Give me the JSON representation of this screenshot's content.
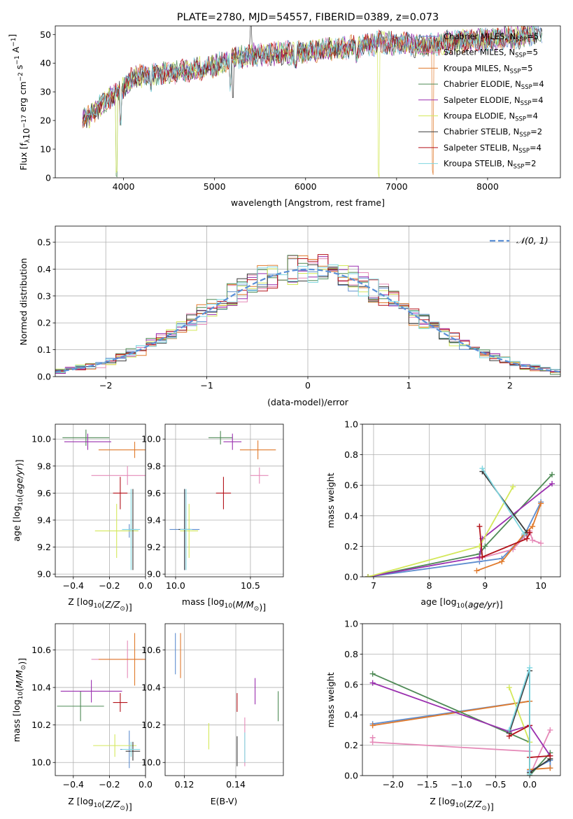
{
  "chart_data": [
    {
      "id": "spectrum",
      "type": "line",
      "title": "PLATE=2780, MJD=54557, FIBERID=0389, z=0.073",
      "xlabel": "wavelength [Angstrom, rest frame]",
      "ylabel": "Flux [f$_\\lambda$10$^{-17}$ erg cm$^{-2}$ s$^{-1}$ A$^{-1}$]",
      "ylabel_parts": [
        "Flux [f",
        "λ",
        "10",
        "−17",
        " erg cm",
        "−2",
        " s",
        "−1",
        " A",
        "−1",
        "]"
      ],
      "xlim": [
        3250,
        8800
      ],
      "ylim": [
        0,
        53
      ],
      "xticks": [
        4000,
        5000,
        6000,
        7000,
        8000
      ],
      "yticks": [
        0,
        10,
        20,
        30,
        40,
        50
      ],
      "grid": false,
      "legend_position": "right",
      "series": [
        {
          "name": "Chabrier MILES, N$_{SSP}$=5",
          "label_main": "Chabrier MILES, N",
          "label_sub": "SSP",
          "label_end": "=5",
          "color": "#5f8ecf"
        },
        {
          "name": "Salpeter MILES, N$_{SSP}$=5",
          "label_main": "Salpeter MILES, N",
          "label_sub": "SSP",
          "label_end": "=5",
          "color": "#e58ab8"
        },
        {
          "name": "Kroupa MILES, N$_{SSP}$=5",
          "label_main": "Kroupa MILES, N",
          "label_sub": "SSP",
          "label_end": "=5",
          "color": "#e07a2c"
        },
        {
          "name": "Chabrier ELODIE, N$_{SSP}$=4",
          "label_main": "Chabrier ELODIE, N",
          "label_sub": "SSP",
          "label_end": "=4",
          "color": "#4e8a55"
        },
        {
          "name": "Salpeter ELODIE, N$_{SSP}$=4",
          "label_main": "Salpeter ELODIE, N",
          "label_sub": "SSP",
          "label_end": "=4",
          "color": "#9a2faf"
        },
        {
          "name": "Kroupa ELODIE, N$_{SSP}$=4",
          "label_main": "Kroupa ELODIE, N",
          "label_sub": "SSP",
          "label_end": "=4",
          "color": "#d4e85a"
        },
        {
          "name": "Chabrier STELIB, N$_{SSP}$=2",
          "label_main": "Chabrier STELIB, N",
          "label_sub": "SSP",
          "label_end": "=2",
          "color": "#3a3a3a"
        },
        {
          "name": "Salpeter STELIB, N$_{SSP}$=4",
          "label_main": "Salpeter STELIB, N",
          "label_sub": "SSP",
          "label_end": "=4",
          "color": "#b3121a"
        },
        {
          "name": "Kroupa STELIB, N$_{SSP}$=2",
          "label_main": "Kroupa STELIB, N",
          "label_sub": "SSP",
          "label_end": "=2",
          "color": "#7fd6e0"
        }
      ],
      "continuum": {
        "x": [
          3550,
          3650,
          3800,
          3950,
          4100,
          4300,
          4600,
          5000,
          5200,
          5500,
          6000,
          6300,
          6600,
          6800,
          7000,
          7300,
          7500,
          7800,
          8000,
          8300,
          8600
        ],
        "y": [
          20,
          22,
          27,
          30,
          35,
          36,
          37,
          39,
          42,
          43,
          44,
          45,
          46,
          47,
          47,
          46,
          47,
          48,
          48,
          49,
          50
        ]
      },
      "dips": [
        {
          "x": 3920,
          "y": 0
        },
        {
          "x": 3970,
          "y": 18
        },
        {
          "x": 4300,
          "y": 30
        },
        {
          "x": 4860,
          "y": 36
        },
        {
          "x": 5175,
          "y": 30
        },
        {
          "x": 5890,
          "y": 38
        },
        {
          "x": 6560,
          "y": 40
        },
        {
          "x": 6800,
          "y": 0
        },
        {
          "x": 7400,
          "y": 0
        }
      ]
    },
    {
      "id": "residuals",
      "type": "line",
      "xlabel": "(data-model)/error",
      "ylabel": "Normed distribution",
      "xlim": [
        -2.5,
        2.5
      ],
      "ylim": [
        0,
        0.56
      ],
      "xticks": [
        -2,
        -1,
        0,
        1,
        2
      ],
      "yticks": [
        0.0,
        0.1,
        0.2,
        0.3,
        0.4,
        0.5
      ],
      "grid": true,
      "legend": "$\\mathcal{N}(0,1)$",
      "legend_text": "𝒩(0, 1)",
      "legend_position": "top-right",
      "bin_width": 0.1,
      "bin_start": -2.5
    },
    {
      "id": "age-vs-Z",
      "type": "scatter",
      "xlabel": "Z [log$_{10}$($Z/Z_\\odot$)]",
      "xlabel_parts": [
        "Z [log",
        "10",
        "(Z/Z",
        "⊙",
        ")]"
      ],
      "ylabel": "age  [log$_{10}$($age/yr$)]",
      "ylabel_parts": [
        "age  [log",
        "10",
        "(age/yr)]"
      ],
      "xlim": [
        -0.5,
        0.0
      ],
      "ylim": [
        8.98,
        10.11
      ],
      "xticks": [
        -0.4,
        -0.2,
        0.0
      ],
      "yticks": [
        9.0,
        9.2,
        9.4,
        9.6,
        9.8,
        10.0
      ],
      "grid": true,
      "points": [
        {
          "series": "Chabrier MILES",
          "x": -0.09,
          "xerr": 0.05,
          "y": 9.32,
          "yerr": 0.05
        },
        {
          "series": "Salpeter MILES",
          "x": -0.1,
          "xerr": 0.2,
          "y": 9.73,
          "yerr": 0.07
        },
        {
          "series": "Kroupa MILES",
          "x": -0.06,
          "xerr": 0.2,
          "y": 9.92,
          "yerr": 0.06
        },
        {
          "series": "Chabrier ELODIE",
          "x": -0.33,
          "xerr": 0.13,
          "y": 10.01,
          "yerr": 0.06
        },
        {
          "series": "Salpeter ELODIE",
          "x": -0.32,
          "xerr": 0.13,
          "y": 9.98,
          "yerr": 0.06
        },
        {
          "series": "Kroupa ELODIE",
          "x": -0.16,
          "xerr": 0.12,
          "y": 9.32,
          "yerr": 0.2
        },
        {
          "series": "Chabrier STELIB",
          "x": -0.07,
          "xerr": 0.02,
          "y": 9.33,
          "yerr": 0.3
        },
        {
          "series": "Salpeter STELIB",
          "x": -0.14,
          "xerr": 0.04,
          "y": 9.6,
          "yerr": 0.12
        },
        {
          "series": "Kroupa STELIB",
          "x": -0.08,
          "xerr": 0.05,
          "y": 9.33,
          "yerr": 0.3
        }
      ]
    },
    {
      "id": "age-vs-mass",
      "type": "scatter",
      "xlabel": "mass [log$_{10}$($M/M_\\odot$)]",
      "xlabel_parts": [
        "mass [log",
        "10",
        "(M/M",
        "⊙",
        ")]"
      ],
      "xlim": [
        9.93,
        10.72
      ],
      "ylim": [
        8.98,
        10.11
      ],
      "xticks": [
        10.0,
        10.5
      ],
      "yticks": [
        9.0,
        9.2,
        9.4,
        9.6,
        9.8,
        10.0
      ],
      "grid": true,
      "points": [
        {
          "series": "Chabrier MILES",
          "x": 10.06,
          "xerr": 0.1,
          "y": 9.33,
          "yerr": 0.3
        },
        {
          "series": "Salpeter MILES",
          "x": 10.56,
          "xerr": 0.06,
          "y": 9.73,
          "yerr": 0.06
        },
        {
          "series": "Kroupa MILES",
          "x": 10.55,
          "xerr": 0.12,
          "y": 9.92,
          "yerr": 0.07
        },
        {
          "series": "Chabrier ELODIE",
          "x": 10.3,
          "xerr": 0.08,
          "y": 10.01,
          "yerr": 0.05
        },
        {
          "series": "Salpeter ELODIE",
          "x": 10.38,
          "xerr": 0.06,
          "y": 9.98,
          "yerr": 0.06
        },
        {
          "series": "Kroupa ELODIE",
          "x": 10.09,
          "xerr": 0.06,
          "y": 9.32,
          "yerr": 0.2
        },
        {
          "series": "Chabrier STELIB",
          "x": 10.06,
          "xerr": 0.04,
          "y": 9.33,
          "yerr": 0.3
        },
        {
          "series": "Salpeter STELIB",
          "x": 10.32,
          "xerr": 0.05,
          "y": 9.6,
          "yerr": 0.12
        },
        {
          "series": "Kroupa STELIB",
          "x": 10.07,
          "xerr": 0.04,
          "y": 9.33,
          "yerr": 0.3
        }
      ]
    },
    {
      "id": "mass-weight-vs-age",
      "type": "line",
      "xlabel": "age  [log$_{10}$($age/yr$)]",
      "xlabel_parts": [
        "age  [log",
        "10",
        "(age/yr)]"
      ],
      "ylabel": "mass weight",
      "xlim": [
        6.8,
        10.35
      ],
      "ylim": [
        0,
        1
      ],
      "xticks": [
        7,
        8,
        9,
        10
      ],
      "yticks": [
        0.0,
        0.2,
        0.4,
        0.6,
        0.8,
        1.0
      ],
      "grid": true,
      "series": [
        {
          "name": "Chabrier MILES",
          "x": [
            6.9,
            8.9,
            9.3,
            9.7,
            10.0
          ],
          "y": [
            0.0,
            0.1,
            0.12,
            0.27,
            0.49
          ]
        },
        {
          "name": "Salpeter MILES",
          "x": [
            8.9,
            9.5,
            9.8,
            9.85,
            10.0
          ],
          "y": [
            0.12,
            0.18,
            0.3,
            0.24,
            0.22
          ]
        },
        {
          "name": "Kroupa MILES",
          "x": [
            8.85,
            9.3,
            9.7,
            9.85,
            10.0
          ],
          "y": [
            0.04,
            0.1,
            0.28,
            0.33,
            0.48
          ]
        },
        {
          "name": "Chabrier ELODIE",
          "x": [
            6.9,
            8.9,
            9.0,
            10.2
          ],
          "y": [
            0.0,
            0.15,
            0.2,
            0.67
          ]
        },
        {
          "name": "Salpeter ELODIE",
          "x": [
            6.9,
            8.9,
            8.95,
            10.2
          ],
          "y": [
            0.0,
            0.13,
            0.25,
            0.61
          ]
        },
        {
          "name": "Kroupa ELODIE",
          "x": [
            6.9,
            8.9,
            9.5
          ],
          "y": [
            0.0,
            0.2,
            0.59
          ]
        },
        {
          "name": "Chabrier STELIB",
          "x": [
            8.95,
            9.75
          ],
          "y": [
            0.69,
            0.29
          ]
        },
        {
          "name": "Salpeter STELIB",
          "x": [
            8.9,
            8.95,
            9.75,
            9.8
          ],
          "y": [
            0.33,
            0.13,
            0.25,
            0.29
          ]
        },
        {
          "name": "Kroupa STELIB",
          "x": [
            8.95,
            9.7
          ],
          "y": [
            0.71,
            0.28
          ]
        }
      ]
    },
    {
      "id": "mass-vs-Z",
      "type": "scatter",
      "xlabel": "Z [log$_{10}$($Z/Z_\\odot$)]",
      "xlabel_parts": [
        "Z [log",
        "10",
        "(Z/Z",
        "⊙",
        ")]"
      ],
      "ylabel": "mass [log$_{10}$($M/M_\\odot$)]",
      "ylabel_parts": [
        "mass [log",
        "10",
        "(M/M",
        "⊙",
        ")]"
      ],
      "xlim": [
        -0.5,
        0.0
      ],
      "ylim": [
        9.93,
        10.74
      ],
      "xticks": [
        -0.4,
        -0.2,
        0.0
      ],
      "yticks": [
        10.0,
        10.2,
        10.4,
        10.6
      ],
      "grid": true,
      "points": [
        {
          "series": "Chabrier MILES",
          "x": -0.09,
          "xerr": 0.05,
          "y": 10.07,
          "yerr": 0.1
        },
        {
          "series": "Salpeter MILES",
          "x": -0.1,
          "xerr": 0.2,
          "y": 10.55,
          "yerr": 0.1
        },
        {
          "series": "Kroupa MILES",
          "x": -0.06,
          "xerr": 0.2,
          "y": 10.55,
          "yerr": 0.14
        },
        {
          "series": "Chabrier ELODIE",
          "x": -0.36,
          "xerr": 0.13,
          "y": 10.3,
          "yerr": 0.08
        },
        {
          "series": "Salpeter ELODIE",
          "x": -0.3,
          "xerr": 0.17,
          "y": 10.38,
          "yerr": 0.06
        },
        {
          "series": "Kroupa ELODIE",
          "x": -0.17,
          "xerr": 0.12,
          "y": 10.09,
          "yerr": 0.06
        },
        {
          "series": "Chabrier STELIB",
          "x": -0.07,
          "xerr": 0.04,
          "y": 10.06,
          "yerr": 0.05
        },
        {
          "series": "Salpeter STELIB",
          "x": -0.14,
          "xerr": 0.04,
          "y": 10.32,
          "yerr": 0.05
        },
        {
          "series": "Kroupa STELIB",
          "x": -0.08,
          "xerr": 0.05,
          "y": 10.07,
          "yerr": 0.04
        }
      ]
    },
    {
      "id": "mass-vs-ebv",
      "type": "scatter",
      "xlabel": "E(B-V)",
      "xlim": [
        0.1125,
        0.1585
      ],
      "ylim": [
        9.93,
        10.74
      ],
      "xticks": [
        0.12,
        0.14
      ],
      "yticks": [
        10.0,
        10.2,
        10.4,
        10.6
      ],
      "grid": true,
      "points": [
        {
          "series": "Chabrier MILES",
          "x": 0.1165,
          "y": 10.58,
          "yerr": 0.11
        },
        {
          "series": "Salpeter MILES",
          "x": 0.1435,
          "y": 10.11,
          "yerr": 0.13
        },
        {
          "series": "Kroupa MILES",
          "x": 0.1185,
          "y": 10.57,
          "yerr": 0.12
        },
        {
          "series": "Chabrier ELODIE",
          "x": 0.1565,
          "y": 10.3,
          "yerr": 0.08
        },
        {
          "series": "Salpeter ELODIE",
          "x": 0.1475,
          "y": 10.38,
          "yerr": 0.07
        },
        {
          "series": "Kroupa ELODIE",
          "x": 0.1295,
          "y": 10.14,
          "yerr": 0.07
        },
        {
          "series": "Chabrier STELIB",
          "x": 0.1405,
          "y": 10.06,
          "yerr": 0.08
        },
        {
          "series": "Salpeter STELIB",
          "x": 0.1405,
          "y": 10.32,
          "yerr": 0.05
        },
        {
          "series": "Kroupa STELIB",
          "x": 0.1435,
          "y": 10.08,
          "yerr": 0.08
        }
      ]
    },
    {
      "id": "mass-weight-vs-Z",
      "type": "line",
      "xlabel": "Z [log$_{10}$($Z/Z_\\odot$)]",
      "xlabel_parts": [
        "Z [log",
        "10",
        "(Z/Z",
        "⊙",
        ")]"
      ],
      "ylabel": "mass weight",
      "xlim": [
        -2.45,
        0.45
      ],
      "ylim": [
        0,
        1
      ],
      "xticks": [
        -2.0,
        -1.5,
        -1.0,
        -0.5,
        0.0
      ],
      "yticks": [
        0.0,
        0.2,
        0.4,
        0.6,
        0.8,
        1.0
      ],
      "grid": true,
      "series": [
        {
          "name": "Chabrier MILES",
          "x": [
            -2.3,
            0.0,
            0.0,
            0.3,
            0.3
          ],
          "y": [
            0.34,
            0.49,
            0.03,
            0.1,
            0.05
          ]
        },
        {
          "name": "Salpeter MILES",
          "x": [
            -2.3,
            -2.3,
            0.0,
            0.0,
            0.3
          ],
          "y": [
            0.25,
            0.22,
            0.16,
            0.0,
            0.3
          ]
        },
        {
          "name": "Kroupa MILES",
          "x": [
            -2.3,
            0.0,
            0.0,
            0.3
          ],
          "y": [
            0.33,
            0.49,
            0.04,
            0.05
          ]
        },
        {
          "name": "Chabrier ELODIE",
          "x": [
            -2.3,
            0.0,
            0.0,
            0.3
          ],
          "y": [
            0.67,
            0.22,
            0.0,
            0.15
          ]
        },
        {
          "name": "Salpeter ELODIE",
          "x": [
            -2.3,
            -0.3,
            0.0,
            0.3
          ],
          "y": [
            0.61,
            0.29,
            0.33,
            0.13
          ]
        },
        {
          "name": "Kroupa ELODIE",
          "x": [
            -0.3,
            0.0,
            0.0
          ],
          "y": [
            0.58,
            0.22,
            0.01
          ]
        },
        {
          "name": "Chabrier STELIB",
          "x": [
            -0.3,
            0.0,
            0.0,
            0.3
          ],
          "y": [
            0.28,
            0.69,
            0.02,
            0.11
          ]
        },
        {
          "name": "Salpeter STELIB",
          "x": [
            -0.3,
            0.0,
            0.0,
            0.3
          ],
          "y": [
            0.26,
            0.33,
            0.12,
            0.13
          ]
        },
        {
          "name": "Kroupa STELIB",
          "x": [
            -0.3,
            0.0,
            0.0
          ],
          "y": [
            0.3,
            0.71,
            0.01
          ]
        }
      ]
    }
  ]
}
